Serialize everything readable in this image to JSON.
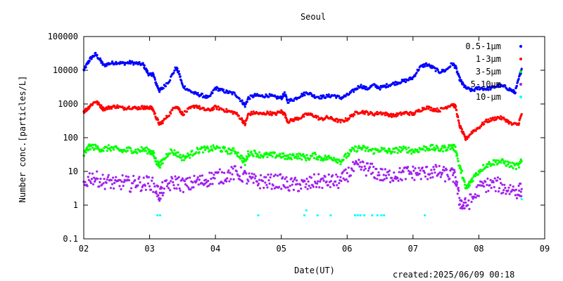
{
  "chart_data": {
    "type": "scatter",
    "title": "Seoul",
    "xlabel": "Date(UT)",
    "ylabel": "Number conc.[particles/L]",
    "yscale": "log",
    "xlim": [
      2,
      9
    ],
    "ylim": [
      0.1,
      100000
    ],
    "x_tick_labels": [
      "02",
      "03",
      "04",
      "05",
      "06",
      "07",
      "08",
      "09"
    ],
    "y_tick_labels": [
      "0.1",
      "1",
      "10",
      "100",
      "1000",
      "10000",
      "100000"
    ],
    "grid": false,
    "legend_position": "top-right",
    "series": [
      {
        "name": "0.5-1μm",
        "color": "#0000ff",
        "points": [
          [
            2.0,
            10000
          ],
          [
            2.05,
            15000
          ],
          [
            2.1,
            22000
          ],
          [
            2.18,
            30000
          ],
          [
            2.25,
            20000
          ],
          [
            2.3,
            14000
          ],
          [
            2.4,
            16000
          ],
          [
            2.5,
            17000
          ],
          [
            2.6,
            16000
          ],
          [
            2.7,
            17000
          ],
          [
            2.8,
            16000
          ],
          [
            2.9,
            15000
          ],
          [
            2.95,
            10000
          ],
          [
            3.0,
            7000
          ],
          [
            3.05,
            8000
          ],
          [
            3.1,
            4000
          ],
          [
            3.15,
            2500
          ],
          [
            3.2,
            3000
          ],
          [
            3.3,
            5000
          ],
          [
            3.4,
            12000
          ],
          [
            3.45,
            8000
          ],
          [
            3.5,
            3500
          ],
          [
            3.6,
            2500
          ],
          [
            3.7,
            2000
          ],
          [
            3.8,
            1800
          ],
          [
            3.9,
            1500
          ],
          [
            4.0,
            3000
          ],
          [
            4.1,
            2500
          ],
          [
            4.2,
            2200
          ],
          [
            4.3,
            2000
          ],
          [
            4.4,
            1200
          ],
          [
            4.45,
            900
          ],
          [
            4.5,
            1500
          ],
          [
            4.6,
            1800
          ],
          [
            4.7,
            1700
          ],
          [
            4.8,
            1800
          ],
          [
            4.9,
            1600
          ],
          [
            5.0,
            1500
          ],
          [
            5.05,
            2000
          ],
          [
            5.1,
            1200
          ],
          [
            5.2,
            1400
          ],
          [
            5.3,
            1800
          ],
          [
            5.4,
            2200
          ],
          [
            5.5,
            1700
          ],
          [
            5.6,
            1600
          ],
          [
            5.7,
            1700
          ],
          [
            5.8,
            1800
          ],
          [
            5.9,
            1500
          ],
          [
            6.0,
            1800
          ],
          [
            6.1,
            2500
          ],
          [
            6.2,
            3500
          ],
          [
            6.3,
            2800
          ],
          [
            6.4,
            3600
          ],
          [
            6.5,
            3000
          ],
          [
            6.6,
            3500
          ],
          [
            6.7,
            4000
          ],
          [
            6.8,
            4500
          ],
          [
            6.9,
            5000
          ],
          [
            7.0,
            6000
          ],
          [
            7.1,
            12000
          ],
          [
            7.2,
            15000
          ],
          [
            7.3,
            12000
          ],
          [
            7.4,
            9000
          ],
          [
            7.5,
            10000
          ],
          [
            7.6,
            16000
          ],
          [
            7.65,
            12000
          ],
          [
            7.7,
            6000
          ],
          [
            7.75,
            4000
          ],
          [
            7.8,
            3000
          ],
          [
            7.9,
            2500
          ],
          [
            8.0,
            3000
          ],
          [
            8.1,
            2800
          ],
          [
            8.2,
            3000
          ],
          [
            8.3,
            3500
          ],
          [
            8.4,
            3200
          ],
          [
            8.5,
            2500
          ],
          [
            8.55,
            2200
          ],
          [
            8.6,
            5000
          ],
          [
            8.65,
            11000
          ]
        ]
      },
      {
        "name": "1-3μm",
        "color": "#ff0000",
        "points": [
          [
            2.0,
            600
          ],
          [
            2.05,
            700
          ],
          [
            2.1,
            900
          ],
          [
            2.18,
            1200
          ],
          [
            2.25,
            900
          ],
          [
            2.3,
            700
          ],
          [
            2.4,
            800
          ],
          [
            2.5,
            850
          ],
          [
            2.6,
            750
          ],
          [
            2.7,
            800
          ],
          [
            2.8,
            750
          ],
          [
            2.9,
            800
          ],
          [
            2.95,
            750
          ],
          [
            3.0,
            800
          ],
          [
            3.05,
            700
          ],
          [
            3.1,
            400
          ],
          [
            3.15,
            250
          ],
          [
            3.2,
            300
          ],
          [
            3.3,
            500
          ],
          [
            3.4,
            900
          ],
          [
            3.45,
            700
          ],
          [
            3.5,
            500
          ],
          [
            3.6,
            700
          ],
          [
            3.7,
            900
          ],
          [
            3.8,
            700
          ],
          [
            3.9,
            650
          ],
          [
            4.0,
            800
          ],
          [
            4.1,
            700
          ],
          [
            4.2,
            600
          ],
          [
            4.3,
            550
          ],
          [
            4.4,
            350
          ],
          [
            4.45,
            250
          ],
          [
            4.5,
            500
          ],
          [
            4.6,
            550
          ],
          [
            4.7,
            500
          ],
          [
            4.8,
            550
          ],
          [
            4.9,
            500
          ],
          [
            5.0,
            600
          ],
          [
            5.05,
            500
          ],
          [
            5.1,
            300
          ],
          [
            5.2,
            350
          ],
          [
            5.3,
            400
          ],
          [
            5.4,
            500
          ],
          [
            5.5,
            450
          ],
          [
            5.6,
            350
          ],
          [
            5.7,
            400
          ],
          [
            5.8,
            350
          ],
          [
            5.9,
            300
          ],
          [
            6.0,
            350
          ],
          [
            6.1,
            500
          ],
          [
            6.2,
            600
          ],
          [
            6.3,
            550
          ],
          [
            6.4,
            500
          ],
          [
            6.5,
            550
          ],
          [
            6.6,
            500
          ],
          [
            6.7,
            450
          ],
          [
            6.8,
            500
          ],
          [
            6.9,
            550
          ],
          [
            7.0,
            500
          ],
          [
            7.1,
            650
          ],
          [
            7.2,
            800
          ],
          [
            7.3,
            700
          ],
          [
            7.4,
            650
          ],
          [
            7.5,
            800
          ],
          [
            7.6,
            1000
          ],
          [
            7.65,
            800
          ],
          [
            7.7,
            250
          ],
          [
            7.75,
            150
          ],
          [
            7.8,
            90
          ],
          [
            7.9,
            150
          ],
          [
            8.0,
            200
          ],
          [
            8.1,
            300
          ],
          [
            8.2,
            350
          ],
          [
            8.3,
            400
          ],
          [
            8.4,
            350
          ],
          [
            8.5,
            250
          ],
          [
            8.6,
            250
          ],
          [
            8.65,
            500
          ]
        ]
      },
      {
        "name": "3-5μm",
        "color": "#00ff00",
        "points": [
          [
            2.0,
            30
          ],
          [
            2.05,
            45
          ],
          [
            2.1,
            55
          ],
          [
            2.2,
            50
          ],
          [
            2.3,
            45
          ],
          [
            2.4,
            50
          ],
          [
            2.5,
            45
          ],
          [
            2.6,
            40
          ],
          [
            2.7,
            45
          ],
          [
            2.8,
            40
          ],
          [
            2.9,
            45
          ],
          [
            3.0,
            40
          ],
          [
            3.05,
            35
          ],
          [
            3.1,
            20
          ],
          [
            3.15,
            15
          ],
          [
            3.2,
            20
          ],
          [
            3.3,
            40
          ],
          [
            3.4,
            35
          ],
          [
            3.5,
            25
          ],
          [
            3.6,
            30
          ],
          [
            3.7,
            40
          ],
          [
            3.8,
            45
          ],
          [
            3.9,
            45
          ],
          [
            4.0,
            50
          ],
          [
            4.1,
            45
          ],
          [
            4.2,
            40
          ],
          [
            4.3,
            40
          ],
          [
            4.4,
            25
          ],
          [
            4.45,
            18
          ],
          [
            4.5,
            35
          ],
          [
            4.6,
            35
          ],
          [
            4.7,
            30
          ],
          [
            4.8,
            30
          ],
          [
            4.9,
            30
          ],
          [
            5.0,
            30
          ],
          [
            5.1,
            25
          ],
          [
            5.2,
            30
          ],
          [
            5.3,
            28
          ],
          [
            5.4,
            25
          ],
          [
            5.5,
            30
          ],
          [
            5.6,
            25
          ],
          [
            5.7,
            25
          ],
          [
            5.8,
            25
          ],
          [
            5.9,
            20
          ],
          [
            6.0,
            30
          ],
          [
            6.1,
            45
          ],
          [
            6.2,
            50
          ],
          [
            6.3,
            45
          ],
          [
            6.4,
            40
          ],
          [
            6.5,
            45
          ],
          [
            6.6,
            40
          ],
          [
            6.7,
            40
          ],
          [
            6.8,
            45
          ],
          [
            6.9,
            45
          ],
          [
            7.0,
            40
          ],
          [
            7.1,
            45
          ],
          [
            7.2,
            50
          ],
          [
            7.3,
            50
          ],
          [
            7.4,
            45
          ],
          [
            7.5,
            50
          ],
          [
            7.6,
            55
          ],
          [
            7.65,
            45
          ],
          [
            7.7,
            15
          ],
          [
            7.75,
            8
          ],
          [
            7.8,
            3
          ],
          [
            7.85,
            4
          ],
          [
            7.9,
            6
          ],
          [
            8.0,
            10
          ],
          [
            8.1,
            15
          ],
          [
            8.2,
            18
          ],
          [
            8.3,
            20
          ],
          [
            8.4,
            18
          ],
          [
            8.5,
            15
          ],
          [
            8.6,
            14
          ],
          [
            8.65,
            20
          ]
        ]
      },
      {
        "name": "5-10μm",
        "color": "#a020f0",
        "points": [
          [
            2.0,
            4
          ],
          [
            2.1,
            7
          ],
          [
            2.2,
            6
          ],
          [
            2.3,
            5
          ],
          [
            2.4,
            5
          ],
          [
            2.5,
            4
          ],
          [
            2.6,
            5
          ],
          [
            2.7,
            4
          ],
          [
            2.8,
            5
          ],
          [
            2.9,
            4
          ],
          [
            3.0,
            5
          ],
          [
            3.1,
            3
          ],
          [
            3.15,
            2
          ],
          [
            3.2,
            3
          ],
          [
            3.3,
            4
          ],
          [
            3.4,
            5
          ],
          [
            3.5,
            4
          ],
          [
            3.6,
            4
          ],
          [
            3.7,
            5
          ],
          [
            3.8,
            5
          ],
          [
            3.9,
            6
          ],
          [
            4.0,
            7
          ],
          [
            4.1,
            7
          ],
          [
            4.2,
            8
          ],
          [
            4.3,
            9
          ],
          [
            4.4,
            8
          ],
          [
            4.5,
            6
          ],
          [
            4.6,
            5
          ],
          [
            4.7,
            5
          ],
          [
            4.8,
            5
          ],
          [
            4.9,
            5
          ],
          [
            5.0,
            5
          ],
          [
            5.1,
            4
          ],
          [
            5.2,
            4
          ],
          [
            5.3,
            4
          ],
          [
            5.4,
            4
          ],
          [
            5.5,
            5
          ],
          [
            5.6,
            5
          ],
          [
            5.7,
            5
          ],
          [
            5.8,
            5
          ],
          [
            5.9,
            5
          ],
          [
            6.0,
            8
          ],
          [
            6.1,
            12
          ],
          [
            6.2,
            14
          ],
          [
            6.3,
            12
          ],
          [
            6.4,
            10
          ],
          [
            6.5,
            8
          ],
          [
            6.6,
            7
          ],
          [
            6.7,
            8
          ],
          [
            6.8,
            8
          ],
          [
            6.9,
            9
          ],
          [
            7.0,
            9
          ],
          [
            7.1,
            9
          ],
          [
            7.2,
            9
          ],
          [
            7.3,
            10
          ],
          [
            7.4,
            9
          ],
          [
            7.5,
            8
          ],
          [
            7.6,
            8
          ],
          [
            7.65,
            6
          ],
          [
            7.7,
            1.5
          ],
          [
            7.75,
            1
          ],
          [
            7.8,
            1
          ],
          [
            7.9,
            1.5
          ],
          [
            8.0,
            3
          ],
          [
            8.1,
            4
          ],
          [
            8.2,
            4
          ],
          [
            8.3,
            4
          ],
          [
            8.4,
            3
          ],
          [
            8.5,
            3
          ],
          [
            8.6,
            2.5
          ],
          [
            8.65,
            3
          ]
        ]
      },
      {
        "name": "10-μm",
        "color": "#00ffff",
        "points": [
          [
            3.12,
            0.5
          ],
          [
            3.16,
            0.5
          ],
          [
            4.65,
            0.5
          ],
          [
            5.35,
            0.5
          ],
          [
            5.38,
            0.7
          ],
          [
            5.55,
            0.5
          ],
          [
            5.75,
            0.5
          ],
          [
            6.12,
            0.5
          ],
          [
            6.16,
            0.5
          ],
          [
            6.2,
            0.5
          ],
          [
            6.26,
            0.5
          ],
          [
            6.38,
            0.5
          ],
          [
            6.46,
            0.5
          ],
          [
            6.52,
            0.5
          ],
          [
            6.56,
            0.5
          ],
          [
            7.18,
            0.5
          ],
          [
            8.65,
            1.5
          ]
        ]
      }
    ]
  },
  "footer": {
    "created": "created:2025/06/09 00:18"
  }
}
